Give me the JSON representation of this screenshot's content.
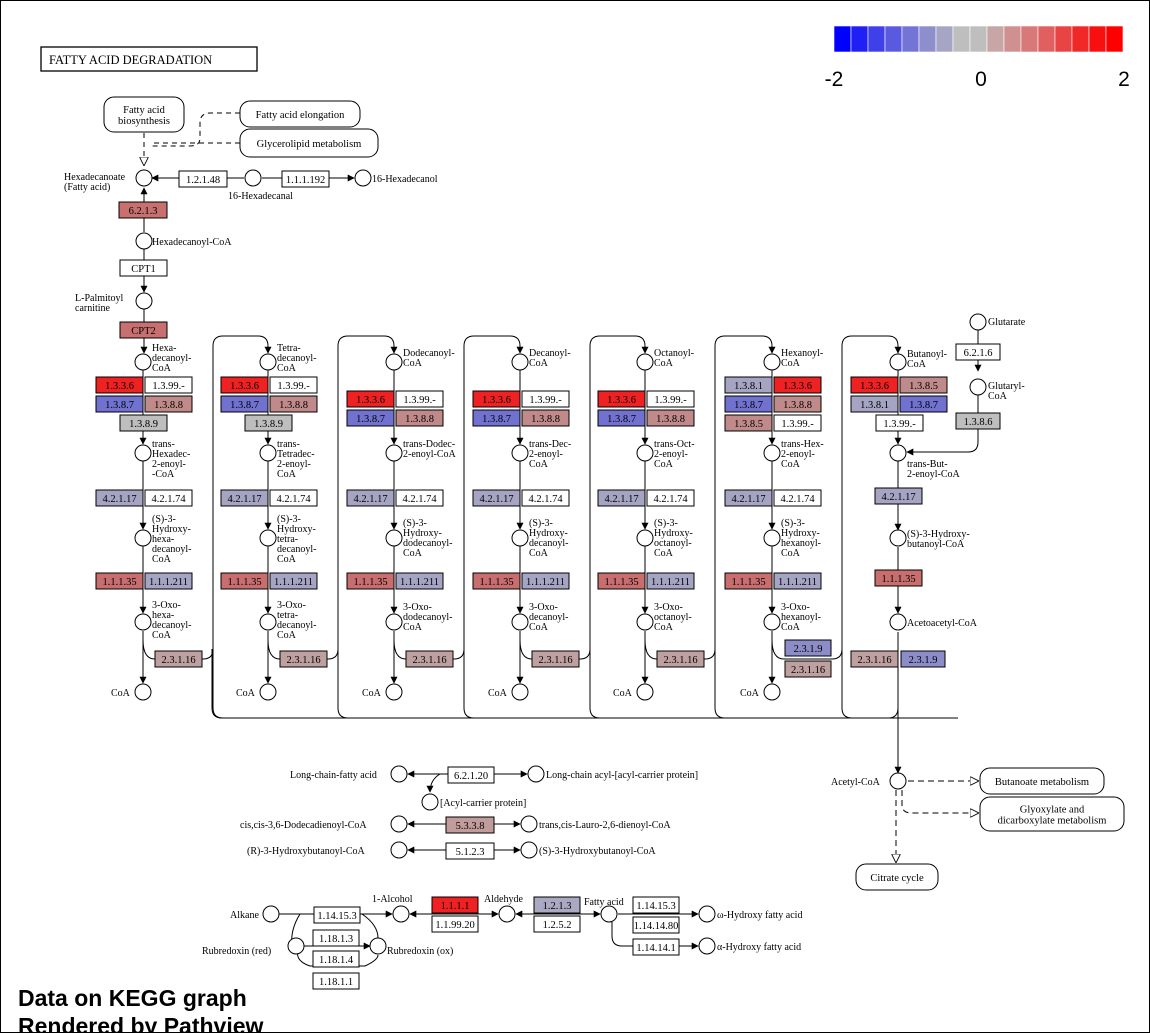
{
  "title": "FATTY ACID DEGRADATION",
  "legend": {
    "min_label": "-2",
    "mid_label": "0",
    "max_label": "2",
    "colors": [
      "#0000ff",
      "#2020f4",
      "#4040ea",
      "#5a5ae0",
      "#7474d6",
      "#8e8ecc",
      "#a6a6c4",
      "#bebebe",
      "#bebebe",
      "#c8a6a6",
      "#d09090",
      "#d87878",
      "#e06060",
      "#e84444",
      "#f02828",
      "#f81010",
      "#ff0000"
    ]
  },
  "colors": {
    "red_strong": "#ee2222",
    "red_mid": "#cd6666",
    "red_light": "#c28c8c",
    "pink": "#bf9f9f",
    "gray": "#bebebe",
    "blue_mid": "#7171d0",
    "blue_light": "#9f9fc4",
    "blue_pale": "#a9a9c3",
    "white": "#ffffff"
  },
  "nodes": {
    "fa_biosynthesis": [
      "Fatty acid",
      "biosynthesis"
    ],
    "fa_elongation": "Fatty acid elongation",
    "glycerolipid": "Glycerolipid metabolism",
    "hexadecanoate": [
      "Hexadecanoate",
      "(Fatty acid)"
    ],
    "hexadecanal": "16-Hexadecanal",
    "hexadecanol": "16-Hexadecanol",
    "hexadecanoyl_coa": "Hexadecanoyl-CoA",
    "l_palmitoyl": [
      "L-Palmitoyl",
      "carnitine"
    ],
    "glutarate": "Glutarate",
    "glutaryl_coa": [
      "Glutaryl-",
      "CoA"
    ],
    "trans_but": [
      "trans-But-",
      "2-enoyl-CoA"
    ],
    "s3_hydroxybutanoyl": [
      "(S)-3-Hydroxy-",
      "butanoyl-CoA"
    ],
    "acetoacetyl": "Acetoacetyl-CoA",
    "acetyl_coa": "Acetyl-CoA",
    "butanoate_met": "Butanoate metabolism",
    "glyoxylate_met": [
      "Glyoxylate and",
      "dicarboxylate metabolism"
    ],
    "citrate_cycle": "Citrate cycle",
    "long_chain_fa": "Long-chain-fatty acid",
    "long_chain_acp": "Long-chain acyl-[acyl-carrier protein]",
    "acp": "[Acyl-carrier protein]",
    "dodecadienoyl": "cis,cis-3,6-Dodecadienoyl-CoA",
    "lauro_dienoyl": "trans,cis-Lauro-2,6-dienoyl-CoA",
    "r3_hydroxybutanoyl": "(R)-3-Hydroxybutanoyl-CoA",
    "s3_hydroxybutanoyl2": "(S)-3-Hydroxybutanoyl-CoA",
    "alkane": "Alkane",
    "alcohol": "1-Alcohol",
    "aldehyde": "Aldehyde",
    "fatty_acid": "Fatty acid",
    "omega_hydroxy": "ω-Hydroxy fatty acid",
    "alpha_hydroxy": "α-Hydroxy fatty acid",
    "rubredoxin_red": "Rubredoxin (red)",
    "rubredoxin_ox": "Rubredoxin (ox)",
    "coa": "CoA"
  },
  "columns": [
    {
      "acyl": [
        "Hexa-",
        "decanoyl-",
        "CoA"
      ],
      "enoyl": [
        "trans-",
        "Hexadec-",
        "2-enoyl-",
        "-CoA"
      ],
      "hydroxy": [
        "(S)-3-",
        "Hydroxy-",
        "hexa-",
        "decanoyl-",
        "CoA"
      ],
      "oxo": [
        "3-Oxo-",
        "hexa-",
        "decanoyl-",
        "CoA"
      ]
    },
    {
      "acyl": [
        "Tetra-",
        "decanoyl-",
        "CoA"
      ],
      "enoyl": [
        "trans-",
        "Tetradec-",
        "2-enoyl-",
        "CoA"
      ],
      "hydroxy": [
        "(S)-3-",
        "Hydroxy-",
        "tetra-",
        "decanoyl-",
        "CoA"
      ],
      "oxo": [
        "3-Oxo-",
        "tetra-",
        "decanoyl-",
        "CoA"
      ]
    },
    {
      "acyl": [
        "Dodecanoyl-",
        "CoA"
      ],
      "enoyl": [
        "trans-Dodec-",
        "2-enoyl-CoA"
      ],
      "hydroxy": [
        "(S)-3-",
        "Hydroxy-",
        "dodecanoyl-",
        "CoA"
      ],
      "oxo": [
        "3-Oxo-",
        "dodecanoyl-",
        "CoA"
      ]
    },
    {
      "acyl": [
        "Decanoyl-",
        "CoA"
      ],
      "enoyl": [
        "trans-Dec-",
        "2-enoyl-",
        "CoA"
      ],
      "hydroxy": [
        "(S)-3-",
        "Hydroxy-",
        "decanoyl-",
        "CoA"
      ],
      "oxo": [
        "3-Oxo-",
        "decanoyl-",
        "CoA"
      ]
    },
    {
      "acyl": [
        "Octanoyl-",
        "CoA"
      ],
      "enoyl": [
        "trans-Oct-",
        "2-enoyl-",
        "CoA"
      ],
      "hydroxy": [
        "(S)-3-",
        "Hydroxy-",
        "octanoyl-",
        "CoA"
      ],
      "oxo": [
        "3-Oxo-",
        "octanoyl-",
        "CoA"
      ]
    },
    {
      "acyl": [
        "Hexanoyl-",
        "CoA"
      ],
      "enoyl": [
        "trans-Hex-",
        "2-enoyl-",
        "CoA"
      ],
      "hydroxy": [
        "(S)-3-",
        "Hydroxy-",
        "hexanoyl-",
        "CoA"
      ],
      "oxo": [
        "3-Oxo-",
        "hexanoyl-",
        "CoA"
      ]
    },
    {
      "acyl": [
        "Butanoyl-",
        "CoA"
      ]
    }
  ],
  "enzymes": {
    "e_1_2_1_48": {
      "label": "1.2.1.48",
      "color": "#ffffff"
    },
    "e_1_1_1_192": {
      "label": "1.1.1.192",
      "color": "#ffffff"
    },
    "e_6_2_1_3": {
      "label": "6.2.1.3",
      "color": "#c87070"
    },
    "e_cpt1": {
      "label": "CPT1",
      "color": "#ffffff"
    },
    "e_cpt2": {
      "label": "CPT2",
      "color": "#c87070"
    },
    "e_6_2_1_6": {
      "label": "6.2.1.6",
      "color": "#ffffff"
    },
    "e_1_3_8_6": {
      "label": "1.3.8.6",
      "color": "#bebebe"
    },
    "e_6_2_1_20": {
      "label": "6.2.1.20",
      "color": "#ffffff"
    },
    "e_5_3_3_8": {
      "label": "5.3.3.8",
      "color": "#c09c9c"
    },
    "e_5_1_2_3": {
      "label": "5.1.2.3",
      "color": "#ffffff"
    },
    "e_1_1_1_1": {
      "label": "1.1.1.1",
      "color": "#ee2222"
    },
    "e_1_1_99_20": {
      "label": "1.1.99.20",
      "color": "#ffffff"
    },
    "e_1_2_1_3": {
      "label": "1.2.1.3",
      "color": "#a9a9c3"
    },
    "e_1_2_5_2": {
      "label": "1.2.5.2",
      "color": "#ffffff"
    },
    "e_1_14_15_3a": {
      "label": "1.14.15.3",
      "color": "#ffffff"
    },
    "e_1_14_15_3b": {
      "label": "1.14.15.3",
      "color": "#ffffff"
    },
    "e_1_14_14_80": {
      "label": "1.14.14.80",
      "color": "#ffffff"
    },
    "e_1_14_14_1": {
      "label": "1.14.14.1",
      "color": "#ffffff"
    },
    "e_1_18_1_3": {
      "label": "1.18.1.3",
      "color": "#ffffff"
    },
    "e_1_18_1_4": {
      "label": "1.18.1.4",
      "color": "#ffffff"
    },
    "e_1_18_1_1": {
      "label": "1.18.1.1",
      "color": "#ffffff"
    },
    "e_2_3_1_9_last": {
      "label": "2.3.1.9",
      "color": "#8c8cc8"
    },
    "e_2_3_1_16_last": {
      "label": "2.3.1.16",
      "color": "#bfa0a0"
    }
  },
  "column_enzymes": [
    {
      "a1": {
        "label": "1.3.3.6",
        "color": "#ee2222"
      },
      "a2": {
        "label": "1.3.99.-",
        "color": "#ffffff"
      },
      "a3": {
        "label": "1.3.8.7",
        "color": "#7171d0"
      },
      "a4": {
        "label": "1.3.8.8",
        "color": "#c08a8a"
      },
      "a5": {
        "label": "1.3.8.9",
        "color": "#bebebe"
      },
      "h": {
        "label": "4.2.1.17",
        "color": "#a5a5c3"
      },
      "h2": {
        "label": "4.2.1.74",
        "color": "#ffffff"
      },
      "d": {
        "label": "1.1.1.35",
        "color": "#c86e6e"
      },
      "d2": {
        "label": "1.1.1.211",
        "color": "#a5a5c3"
      },
      "t": {
        "label": "2.3.1.16",
        "color": "#bfa0a0"
      }
    },
    {
      "a1": {
        "label": "1.3.3.6",
        "color": "#ee2222"
      },
      "a2": {
        "label": "1.3.99.-",
        "color": "#ffffff"
      },
      "a3": {
        "label": "1.3.8.7",
        "color": "#7171d0"
      },
      "a4": {
        "label": "1.3.8.8",
        "color": "#c08a8a"
      },
      "a5": {
        "label": "1.3.8.9",
        "color": "#bebebe"
      },
      "h": {
        "label": "4.2.1.17",
        "color": "#a5a5c3"
      },
      "h2": {
        "label": "4.2.1.74",
        "color": "#ffffff"
      },
      "d": {
        "label": "1.1.1.35",
        "color": "#c86e6e"
      },
      "d2": {
        "label": "1.1.1.211",
        "color": "#a5a5c3"
      },
      "t": {
        "label": "2.3.1.16",
        "color": "#bfa0a0"
      }
    },
    {
      "a1": {
        "label": "1.3.3.6",
        "color": "#ee2222"
      },
      "a2": {
        "label": "1.3.99.-",
        "color": "#ffffff"
      },
      "a3": {
        "label": "1.3.8.7",
        "color": "#7171d0"
      },
      "a4": {
        "label": "1.3.8.8",
        "color": "#c08a8a"
      },
      "h": {
        "label": "4.2.1.17",
        "color": "#a5a5c3"
      },
      "h2": {
        "label": "4.2.1.74",
        "color": "#ffffff"
      },
      "d": {
        "label": "1.1.1.35",
        "color": "#c86e6e"
      },
      "d2": {
        "label": "1.1.1.211",
        "color": "#a5a5c3"
      },
      "t": {
        "label": "2.3.1.16",
        "color": "#bfa0a0"
      }
    },
    {
      "a1": {
        "label": "1.3.3.6",
        "color": "#ee2222"
      },
      "a2": {
        "label": "1.3.99.-",
        "color": "#ffffff"
      },
      "a3": {
        "label": "1.3.8.7",
        "color": "#7171d0"
      },
      "a4": {
        "label": "1.3.8.8",
        "color": "#c08a8a"
      },
      "h": {
        "label": "4.2.1.17",
        "color": "#a5a5c3"
      },
      "h2": {
        "label": "4.2.1.74",
        "color": "#ffffff"
      },
      "d": {
        "label": "1.1.1.35",
        "color": "#c86e6e"
      },
      "d2": {
        "label": "1.1.1.211",
        "color": "#a5a5c3"
      },
      "t": {
        "label": "2.3.1.16",
        "color": "#bfa0a0"
      }
    },
    {
      "a1": {
        "label": "1.3.3.6",
        "color": "#ee2222"
      },
      "a2": {
        "label": "1.3.99.-",
        "color": "#ffffff"
      },
      "a3": {
        "label": "1.3.8.7",
        "color": "#7171d0"
      },
      "a4": {
        "label": "1.3.8.8",
        "color": "#c08a8a"
      },
      "h": {
        "label": "4.2.1.17",
        "color": "#a5a5c3"
      },
      "h2": {
        "label": "4.2.1.74",
        "color": "#ffffff"
      },
      "d": {
        "label": "1.1.1.35",
        "color": "#c86e6e"
      },
      "d2": {
        "label": "1.1.1.211",
        "color": "#a5a5c3"
      },
      "t": {
        "label": "2.3.1.16",
        "color": "#bfa0a0"
      }
    },
    {
      "a0": {
        "label": "1.3.8.1",
        "color": "#a5a5c3"
      },
      "a1": {
        "label": "1.3.3.6",
        "color": "#ee2222"
      },
      "a3": {
        "label": "1.3.8.7",
        "color": "#7171d0"
      },
      "a4": {
        "label": "1.3.8.8",
        "color": "#c08a8a"
      },
      "a6": {
        "label": "1.3.8.5",
        "color": "#c08a8a"
      },
      "a2": {
        "label": "1.3.99.-",
        "color": "#ffffff"
      },
      "h": {
        "label": "4.2.1.17",
        "color": "#a5a5c3"
      },
      "h2": {
        "label": "4.2.1.74",
        "color": "#ffffff"
      },
      "d": {
        "label": "1.1.1.35",
        "color": "#c86e6e"
      },
      "d2": {
        "label": "1.1.1.211",
        "color": "#a5a5c3"
      },
      "t9": {
        "label": "2.3.1.9",
        "color": "#8c8cc8"
      },
      "t": {
        "label": "2.3.1.16",
        "color": "#bfa0a0"
      }
    },
    {
      "a1": {
        "label": "1.3.3.6",
        "color": "#ee2222"
      },
      "a6": {
        "label": "1.3.8.5",
        "color": "#c08a8a"
      },
      "a0": {
        "label": "1.3.8.1",
        "color": "#a5a5c3"
      },
      "a3": {
        "label": "1.3.8.7",
        "color": "#7171d0"
      },
      "a2": {
        "label": "1.3.99.-",
        "color": "#ffffff"
      },
      "h": {
        "label": "4.2.1.17",
        "color": "#a5a5c3"
      },
      "d": {
        "label": "1.1.1.35",
        "color": "#c86e6e"
      }
    }
  ],
  "footer": {
    "line1": "Data on KEGG graph",
    "line2": "Rendered by Pathview"
  }
}
